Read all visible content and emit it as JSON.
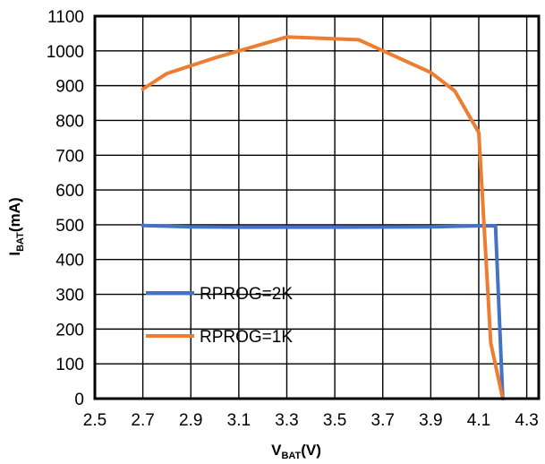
{
  "chart_data": {
    "type": "line",
    "title": "",
    "xlabel": {
      "main": "V",
      "sub": "BAT",
      "unit": "(V)"
    },
    "ylabel": {
      "main": "I",
      "sub": "BAT",
      "unit": "(mA)"
    },
    "xlim": [
      2.5,
      4.35
    ],
    "ylim": [
      0,
      1100
    ],
    "x_ticks": [
      "2.5",
      "2.7",
      "2.9",
      "3.1",
      "3.3",
      "3.5",
      "3.7",
      "3.9",
      "4.1",
      "4.3"
    ],
    "y_ticks": [
      "0",
      "100",
      "200",
      "300",
      "400",
      "500",
      "600",
      "700",
      "800",
      "900",
      "1000",
      "1100"
    ],
    "grid": true,
    "legend_position": "bottom-left",
    "series": [
      {
        "name": "RPROG=2K",
        "color": "#4472C4",
        "points": [
          [
            2.7,
            498
          ],
          [
            2.9,
            494
          ],
          [
            3.1,
            493
          ],
          [
            3.5,
            493
          ],
          [
            3.9,
            494
          ],
          [
            4.1,
            497
          ],
          [
            4.17,
            497
          ],
          [
            4.2,
            0
          ]
        ]
      },
      {
        "name": "RPROG=1K",
        "color": "#ED7D31",
        "points": [
          [
            2.7,
            890
          ],
          [
            2.8,
            935
          ],
          [
            3.0,
            980
          ],
          [
            3.3,
            1040
          ],
          [
            3.6,
            1032
          ],
          [
            3.9,
            938
          ],
          [
            4.0,
            885
          ],
          [
            4.1,
            765
          ],
          [
            4.15,
            160
          ],
          [
            4.2,
            0
          ]
        ]
      }
    ]
  }
}
